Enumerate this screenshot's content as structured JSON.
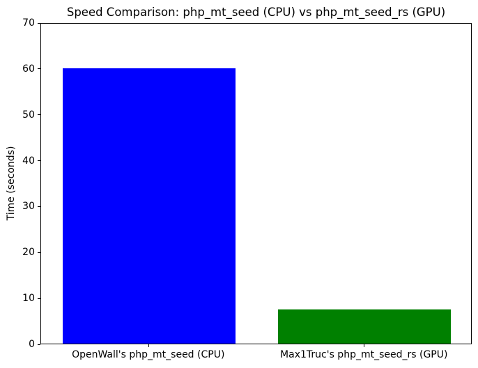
{
  "figure": {
    "background": "#ffffff"
  },
  "chart_data": {
    "type": "bar",
    "title": "Speed Comparison: php_mt_seed (CPU) vs php_mt_seed_rs (GPU)",
    "categories": [
      "OpenWall's php_mt_seed (CPU)",
      "Max1Truc's php_mt_seed_rs (GPU)"
    ],
    "values": [
      60,
      7.5
    ],
    "bar_colors": [
      "#0000ff",
      "#008000"
    ],
    "xlabel": "",
    "ylabel": "Time (seconds)",
    "ylim": [
      0,
      70
    ],
    "yticks": [
      0,
      10,
      20,
      30,
      40,
      50,
      60,
      70
    ],
    "grid": false,
    "legend": "none"
  }
}
